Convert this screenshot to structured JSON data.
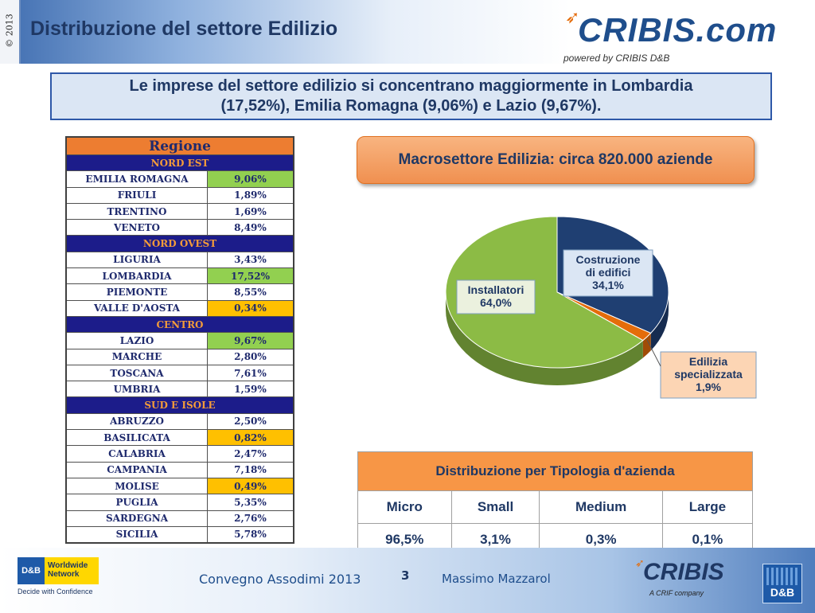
{
  "header": {
    "title": "Distribuzione  del  settore  Edilizio",
    "side_year": "© 2013",
    "brand": "CRIBIS.com",
    "brand_tagline": "powered by CRIBIS D&B"
  },
  "summary": {
    "line1": "Le imprese  del settore edilizio  si concentrano   maggiormente   in Lombardia",
    "line2": "(17,52%),   Emilia Romagna  (9,06%)  e Lazio  (9,67%)."
  },
  "region_table": {
    "header": "Regione",
    "groups": [
      {
        "name": "NORD EST",
        "rows": [
          {
            "region": "EMILIA ROMAGNA",
            "value": "9,06%",
            "highlight": "green"
          },
          {
            "region": "FRIULI",
            "value": "1,89%",
            "highlight": ""
          },
          {
            "region": "TRENTINO",
            "value": "1,69%",
            "highlight": ""
          },
          {
            "region": "VENETO",
            "value": "8,49%",
            "highlight": ""
          }
        ]
      },
      {
        "name": "NORD OVEST",
        "rows": [
          {
            "region": "LIGURIA",
            "value": "3,43%",
            "highlight": ""
          },
          {
            "region": "LOMBARDIA",
            "value": "17,52%",
            "highlight": "green"
          },
          {
            "region": "PIEMONTE",
            "value": "8,55%",
            "highlight": ""
          },
          {
            "region": "VALLE D'AOSTA",
            "value": "0,34%",
            "highlight": "orange"
          }
        ]
      },
      {
        "name": "CENTRO",
        "rows": [
          {
            "region": "LAZIO",
            "value": "9,67%",
            "highlight": "green"
          },
          {
            "region": "MARCHE",
            "value": "2,80%",
            "highlight": ""
          },
          {
            "region": "TOSCANA",
            "value": "7,61%",
            "highlight": ""
          },
          {
            "region": "UMBRIA",
            "value": "1,59%",
            "highlight": ""
          }
        ]
      },
      {
        "name": "SUD E ISOLE",
        "rows": [
          {
            "region": "ABRUZZO",
            "value": "2,50%",
            "highlight": ""
          },
          {
            "region": "BASILICATA",
            "value": "0,82%",
            "highlight": "orange"
          },
          {
            "region": "CALABRIA",
            "value": "2,47%",
            "highlight": ""
          },
          {
            "region": "CAMPANIA",
            "value": "7,18%",
            "highlight": ""
          },
          {
            "region": "MOLISE",
            "value": "0,49%",
            "highlight": "orange"
          },
          {
            "region": "PUGLIA",
            "value": "5,35%",
            "highlight": ""
          },
          {
            "region": "SARDEGNA",
            "value": "2,76%",
            "highlight": ""
          },
          {
            "region": "SICILIA",
            "value": "5,78%",
            "highlight": ""
          }
        ]
      }
    ]
  },
  "macro_banner": "Macrosettore Edilizia: circa 820.000 aziende",
  "chart_data": {
    "type": "pie",
    "slices": [
      {
        "label_lines": [
          "Costruzione",
          "di edifici",
          "34,1%"
        ],
        "value": 34.1,
        "color": "#1f3f72"
      },
      {
        "label_lines": [
          "Edilizia",
          "specializzata",
          "1,9%"
        ],
        "value": 1.9,
        "color": "#e46c0a"
      },
      {
        "label_lines": [
          "Installatori",
          "64,0%"
        ],
        "value": 64.0,
        "color": "#8cbb45"
      }
    ]
  },
  "distribution": {
    "title": "Distribuzione per  Tipologia d'azienda",
    "headers": [
      "Micro",
      "Small",
      "Medium",
      "Large"
    ],
    "values": [
      "96,5%",
      "3,1%",
      "0,3%",
      "0,1%"
    ]
  },
  "footer": {
    "ww_db": "D&B",
    "ww_line1": "Worldwide",
    "ww_line2": "Network",
    "ww_tagline": "Decide with Confidence",
    "event": "Convegno Assodimi 2013",
    "page": "3",
    "author": "Massimo Mazzarol",
    "brand": "CRIBIS",
    "crif": "A CRIF company",
    "db": "D&B"
  },
  "colors": {
    "navy": "#1f3864",
    "group_bg": "#1c1c8a",
    "group_text": "#f39b3a",
    "header_orange": "#ed7d31",
    "green": "#92d050",
    "orange": "#ffc000"
  }
}
